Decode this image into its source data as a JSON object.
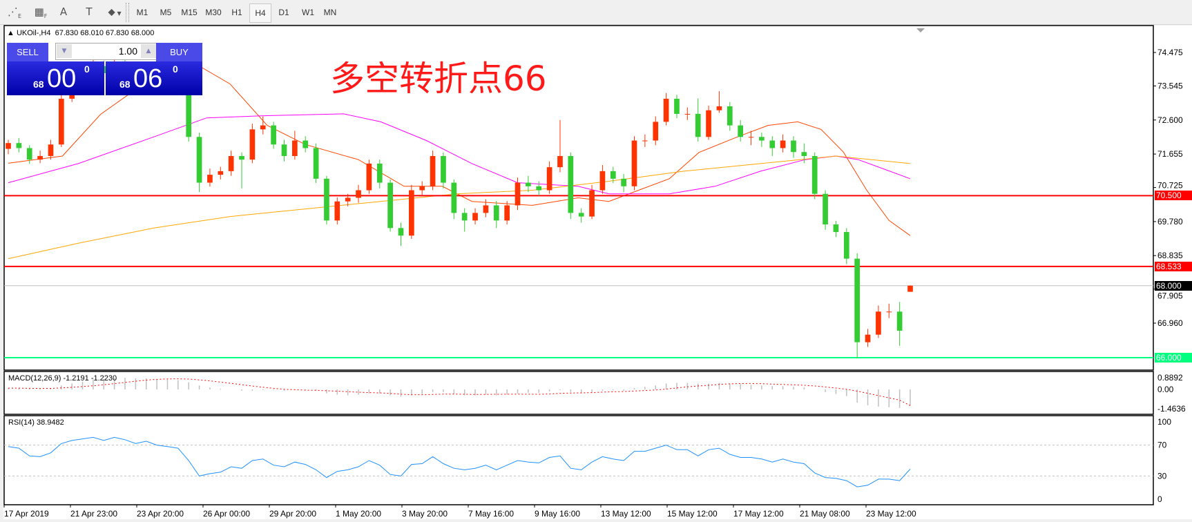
{
  "toolbar": {
    "icons": [
      "fibonacci-expansion-icon",
      "fibonacci-fan-icon",
      "text-icon",
      "text-label-icon",
      "arrows-dropdown-icon"
    ],
    "icon_glyphs": [
      "⋰",
      "▦",
      "A",
      "T",
      "⬥"
    ],
    "icon_subs": [
      "E",
      "F",
      "",
      "",
      ""
    ],
    "periods": [
      "M1",
      "M5",
      "M15",
      "M30",
      "H1",
      "H4",
      "D1",
      "W1",
      "MN"
    ],
    "active_period": "H4"
  },
  "chart": {
    "header_symbol": "UKOil-,H4",
    "header_ohlc": "67.830 68.010 67.830 68.000",
    "annotation": "多空转折点66",
    "colors": {
      "bull": "#ff3300",
      "bear": "#33cc33",
      "fast_ma": "#ff4500",
      "mid_ma": "#ff00ff",
      "slow_ma": "#ffa500"
    }
  },
  "trade_panel": {
    "sell_label": "SELL",
    "buy_label": "BUY",
    "lot": "1.00",
    "sell_small": "68",
    "sell_big": "00",
    "sell_sup": "0",
    "buy_small": "68",
    "buy_big": "06",
    "buy_sup": "0"
  },
  "price_axis": {
    "ticks": [
      "74.475",
      "73.545",
      "72.600",
      "71.655",
      "70.725",
      "69.780",
      "68.835",
      "67.905",
      "66.960"
    ],
    "levels": [
      {
        "value": "70.500",
        "color": "#ff0000",
        "text_color": "#ffffff",
        "kind": "resistance"
      },
      {
        "value": "68.533",
        "color": "#ff0000",
        "text_color": "#ffffff",
        "kind": "resistance"
      },
      {
        "value": "68.000",
        "color": "#c0c0c0",
        "label_bg": "#000000",
        "text_color": "#ffffff",
        "kind": "bid"
      },
      {
        "value": "66.000",
        "color": "#00ff7f",
        "text_color": "#ffffff",
        "kind": "support"
      }
    ]
  },
  "macd": {
    "label": "MACD(12,26,9) -1.2191 -1.2230",
    "ticks": [
      "0.8892",
      "0.00",
      "-1.4636"
    ]
  },
  "rsi": {
    "label": "RSI(14) 38.9482",
    "ticks": [
      "100",
      "70",
      "30",
      "0"
    ],
    "levels": [
      70,
      30
    ]
  },
  "time_axis": {
    "labels": [
      "17 Apr 2019",
      "21 Apr 23:00",
      "23 Apr 20:00",
      "26 Apr 00:00",
      "29 Apr 20:00",
      "1 May 20:00",
      "3 May 20:00",
      "7 May 16:00",
      "9 May 16:00",
      "13 May 12:00",
      "15 May 12:00",
      "17 May 12:00",
      "21 May 08:00",
      "23 May 12:00"
    ]
  },
  "chart_data": {
    "type": "bar",
    "style": "candlestick",
    "symbol": "UKOil-",
    "timeframe": "H4",
    "ylim": [
      65.9,
      75.3
    ],
    "candles_ohlc": [
      [
        71.8,
        72.05,
        71.65,
        71.96
      ],
      [
        71.96,
        72.1,
        71.7,
        71.82
      ],
      [
        71.82,
        71.9,
        71.38,
        71.5
      ],
      [
        71.5,
        71.75,
        71.4,
        71.6
      ],
      [
        71.6,
        72.05,
        71.5,
        71.92
      ],
      [
        71.92,
        73.3,
        71.85,
        73.19
      ],
      [
        73.19,
        73.75,
        73.1,
        73.6
      ],
      [
        73.6,
        74.05,
        73.5,
        73.9
      ],
      [
        73.9,
        74.3,
        73.8,
        74.1
      ],
      [
        74.1,
        74.25,
        73.8,
        73.9
      ],
      [
        73.9,
        74.4,
        73.85,
        74.2
      ],
      [
        74.2,
        74.3,
        73.9,
        74.0
      ],
      [
        74.0,
        74.1,
        73.6,
        73.7
      ],
      [
        73.7,
        74.0,
        73.6,
        73.9
      ],
      [
        73.9,
        74.0,
        73.5,
        73.6
      ],
      [
        73.6,
        73.7,
        73.4,
        73.5
      ],
      [
        73.5,
        73.6,
        73.3,
        73.44
      ],
      [
        73.44,
        73.55,
        72.0,
        72.13
      ],
      [
        72.13,
        72.25,
        70.6,
        70.86
      ],
      [
        70.86,
        71.25,
        70.75,
        71.08
      ],
      [
        71.08,
        71.3,
        70.95,
        71.18
      ],
      [
        71.18,
        71.75,
        71.05,
        71.6
      ],
      [
        71.6,
        71.7,
        70.7,
        71.5
      ],
      [
        71.5,
        72.5,
        71.4,
        72.34
      ],
      [
        72.34,
        72.7,
        72.2,
        72.45
      ],
      [
        72.45,
        72.55,
        71.8,
        71.92
      ],
      [
        71.92,
        72.05,
        71.45,
        71.6
      ],
      [
        71.6,
        72.3,
        71.5,
        72.03
      ],
      [
        72.03,
        72.15,
        71.7,
        71.82
      ],
      [
        71.82,
        71.95,
        70.85,
        70.97
      ],
      [
        70.97,
        71.05,
        69.7,
        69.81
      ],
      [
        69.81,
        70.45,
        69.7,
        70.34
      ],
      [
        70.34,
        70.55,
        70.2,
        70.44
      ],
      [
        70.44,
        70.8,
        70.3,
        70.65
      ],
      [
        70.65,
        71.5,
        70.55,
        71.39
      ],
      [
        71.39,
        71.5,
        70.7,
        70.86
      ],
      [
        70.86,
        70.95,
        69.5,
        69.6
      ],
      [
        69.6,
        69.75,
        69.1,
        69.39
      ],
      [
        69.39,
        70.8,
        69.3,
        70.65
      ],
      [
        70.65,
        70.9,
        70.5,
        70.76
      ],
      [
        70.76,
        71.75,
        70.65,
        71.6
      ],
      [
        71.6,
        71.7,
        70.7,
        70.86
      ],
      [
        70.86,
        70.95,
        69.85,
        70.02
      ],
      [
        70.02,
        70.15,
        69.5,
        69.81
      ],
      [
        69.81,
        70.15,
        69.7,
        70.02
      ],
      [
        70.02,
        70.4,
        69.9,
        70.23
      ],
      [
        70.23,
        70.35,
        69.6,
        69.81
      ],
      [
        69.81,
        70.35,
        69.7,
        70.23
      ],
      [
        70.23,
        71.0,
        70.1,
        70.86
      ],
      [
        70.86,
        71.05,
        70.6,
        70.76
      ],
      [
        70.76,
        70.9,
        70.5,
        70.65
      ],
      [
        70.65,
        71.45,
        70.55,
        71.29
      ],
      [
        71.29,
        72.6,
        71.15,
        71.6
      ],
      [
        71.6,
        71.7,
        69.85,
        70.02
      ],
      [
        70.02,
        70.15,
        69.75,
        69.92
      ],
      [
        69.92,
        70.8,
        69.85,
        70.65
      ],
      [
        70.65,
        71.35,
        70.55,
        71.18
      ],
      [
        71.18,
        71.3,
        70.85,
        70.97
      ],
      [
        70.97,
        71.1,
        70.6,
        70.76
      ],
      [
        70.76,
        72.15,
        70.65,
        72.03
      ],
      [
        72.03,
        72.2,
        71.85,
        72.03
      ],
      [
        72.03,
        72.7,
        71.9,
        72.55
      ],
      [
        72.55,
        73.35,
        72.45,
        73.19
      ],
      [
        73.19,
        73.3,
        72.65,
        72.77
      ],
      [
        72.77,
        72.95,
        72.6,
        72.77
      ],
      [
        72.77,
        73.2,
        72.0,
        72.13
      ],
      [
        72.13,
        73.0,
        72.05,
        72.87
      ],
      [
        72.87,
        73.4,
        72.8,
        72.98
      ],
      [
        72.98,
        73.1,
        72.3,
        72.45
      ],
      [
        72.45,
        72.6,
        72.0,
        72.13
      ],
      [
        72.13,
        72.3,
        71.9,
        72.13
      ],
      [
        72.13,
        72.25,
        71.85,
        72.03
      ],
      [
        72.03,
        72.15,
        71.6,
        71.82
      ],
      [
        71.82,
        72.2,
        71.7,
        72.03
      ],
      [
        72.03,
        72.15,
        71.55,
        71.71
      ],
      [
        71.71,
        71.95,
        71.4,
        71.6
      ],
      [
        71.6,
        71.7,
        70.4,
        70.55
      ],
      [
        70.55,
        70.65,
        69.55,
        69.7
      ],
      [
        69.7,
        69.8,
        69.35,
        69.49
      ],
      [
        69.49,
        69.6,
        68.6,
        68.75
      ],
      [
        68.75,
        68.9,
        66.0,
        66.43
      ],
      [
        66.43,
        66.8,
        66.3,
        66.64
      ],
      [
        66.64,
        67.45,
        66.55,
        67.28
      ],
      [
        67.28,
        67.5,
        67.1,
        67.28
      ],
      [
        67.28,
        67.55,
        66.33,
        66.75
      ],
      [
        67.83,
        68.01,
        67.83,
        68.0
      ]
    ],
    "moving_averages": [
      {
        "color": "#ff4500",
        "points": [
          [
            0,
            71.4
          ],
          [
            5.1,
            71.6
          ],
          [
            8.7,
            72.76
          ],
          [
            13.7,
            73.8
          ],
          [
            18,
            74.1
          ],
          [
            20.9,
            73.6
          ],
          [
            24.4,
            72.45
          ],
          [
            28,
            71.92
          ],
          [
            33,
            71.5
          ],
          [
            37.3,
            70.76
          ],
          [
            40.9,
            70.76
          ],
          [
            43.7,
            70.34
          ],
          [
            49.4,
            70.23
          ],
          [
            53.7,
            70.44
          ],
          [
            56.6,
            70.34
          ],
          [
            59.4,
            70.65
          ],
          [
            62.3,
            70.97
          ],
          [
            65.1,
            71.7
          ],
          [
            68.7,
            72.13
          ],
          [
            71.6,
            72.45
          ],
          [
            74.4,
            72.55
          ],
          [
            76.6,
            72.34
          ],
          [
            78.7,
            71.71
          ],
          [
            80.9,
            70.65
          ],
          [
            83,
            69.81
          ],
          [
            85,
            69.39
          ]
        ]
      },
      {
        "color": "#ff00ff",
        "points": [
          [
            0,
            70.86
          ],
          [
            6.6,
            71.39
          ],
          [
            13.7,
            72.13
          ],
          [
            18.7,
            72.66
          ],
          [
            24.4,
            72.72
          ],
          [
            31.6,
            72.77
          ],
          [
            35.1,
            72.55
          ],
          [
            39.4,
            72.03
          ],
          [
            43.7,
            71.39
          ],
          [
            48,
            70.86
          ],
          [
            53.7,
            70.76
          ],
          [
            56.6,
            70.55
          ],
          [
            62.3,
            70.55
          ],
          [
            66.6,
            70.76
          ],
          [
            70.9,
            71.18
          ],
          [
            75.1,
            71.5
          ],
          [
            78,
            71.6
          ],
          [
            80.1,
            71.5
          ],
          [
            85,
            70.97
          ]
        ]
      },
      {
        "color": "#ffa500",
        "points": [
          [
            0,
            68.75
          ],
          [
            6.6,
            69.18
          ],
          [
            13.7,
            69.6
          ],
          [
            20.9,
            69.92
          ],
          [
            28,
            70.13
          ],
          [
            35.1,
            70.34
          ],
          [
            42.3,
            70.55
          ],
          [
            49.4,
            70.65
          ],
          [
            56.6,
            70.9
          ],
          [
            63.7,
            71.18
          ],
          [
            70.9,
            71.39
          ],
          [
            78,
            71.6
          ],
          [
            85,
            71.39
          ]
        ]
      }
    ],
    "macd_main": [
      0.1,
      0.1,
      0.05,
      0.05,
      0.1,
      0.3,
      0.45,
      0.6,
      0.75,
      0.8,
      0.88,
      0.88,
      0.85,
      0.85,
      0.8,
      0.75,
      0.7,
      0.55,
      0.3,
      0.15,
      0.05,
      0,
      -0.1,
      -0.1,
      -0.05,
      -0.05,
      -0.1,
      -0.05,
      -0.05,
      -0.1,
      -0.3,
      -0.4,
      -0.45,
      -0.4,
      -0.3,
      -0.3,
      -0.45,
      -0.55,
      -0.45,
      -0.35,
      -0.2,
      -0.2,
      -0.35,
      -0.45,
      -0.45,
      -0.4,
      -0.45,
      -0.4,
      -0.3,
      -0.25,
      -0.25,
      -0.15,
      -0.05,
      -0.2,
      -0.3,
      -0.25,
      -0.1,
      -0.05,
      -0.1,
      0.1,
      0.2,
      0.3,
      0.45,
      0.5,
      0.5,
      0.45,
      0.45,
      0.5,
      0.45,
      0.4,
      0.35,
      0.3,
      0.25,
      0.25,
      0.2,
      0.15,
      0,
      -0.2,
      -0.35,
      -0.5,
      -1.0,
      -1.2,
      -1.3,
      -1.35,
      -1.4,
      -1.2191
    ],
    "macd_signal_last": -1.223,
    "rsi": [
      68,
      66,
      56,
      55,
      60,
      72,
      76,
      78,
      80,
      76,
      80,
      77,
      72,
      75,
      70,
      68,
      66,
      50,
      30,
      33,
      35,
      42,
      40,
      50,
      52,
      44,
      42,
      48,
      45,
      38,
      28,
      36,
      38,
      42,
      50,
      44,
      32,
      30,
      45,
      46,
      55,
      46,
      40,
      38,
      40,
      44,
      38,
      44,
      50,
      48,
      47,
      54,
      56,
      40,
      38,
      48,
      55,
      52,
      50,
      62,
      62,
      66,
      70,
      64,
      64,
      56,
      64,
      66,
      58,
      54,
      54,
      52,
      48,
      52,
      48,
      46,
      34,
      28,
      27,
      24,
      16,
      18,
      26,
      26,
      24,
      38.9482
    ]
  }
}
